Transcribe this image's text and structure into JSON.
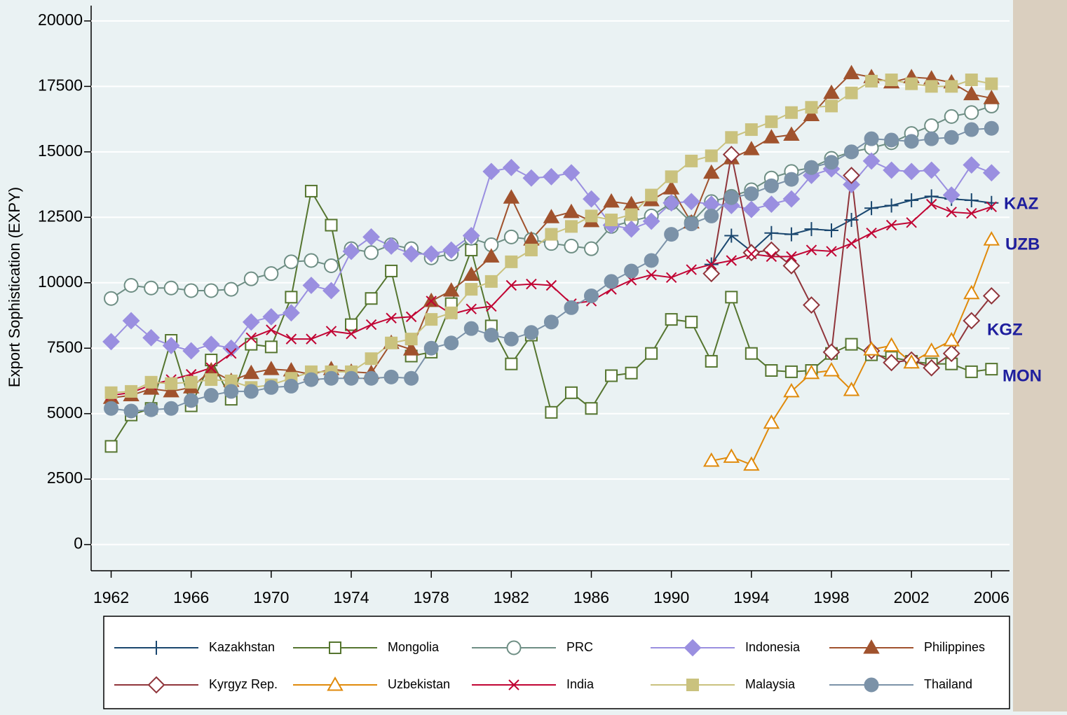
{
  "chart_data": {
    "type": "line",
    "y_label": "Export Sophistication (EXPY)",
    "x": [
      1962,
      1963,
      1964,
      1965,
      1966,
      1967,
      1968,
      1969,
      1970,
      1971,
      1972,
      1973,
      1974,
      1975,
      1976,
      1977,
      1978,
      1979,
      1980,
      1981,
      1982,
      1983,
      1984,
      1985,
      1986,
      1987,
      1988,
      1989,
      1990,
      1991,
      1992,
      1993,
      1994,
      1995,
      1996,
      1997,
      1998,
      1999,
      2000,
      2001,
      2002,
      2003,
      2004,
      2005,
      2006
    ],
    "xlim": [
      1961,
      2006.9
    ],
    "xticks": [
      1962,
      1966,
      1970,
      1974,
      1978,
      1982,
      1986,
      1990,
      1994,
      1998,
      2002,
      2006
    ],
    "ylim": [
      -1000,
      20800
    ],
    "yticks": [
      0,
      2500,
      5000,
      7500,
      10000,
      12500,
      15000,
      17500,
      20000
    ],
    "grid": true,
    "series": [
      {
        "name": "Kazakhstan",
        "color": "#1a476f",
        "marker": "plus",
        "values": [
          null,
          null,
          null,
          null,
          null,
          null,
          null,
          null,
          null,
          null,
          null,
          null,
          null,
          null,
          null,
          null,
          null,
          null,
          null,
          null,
          null,
          null,
          null,
          null,
          null,
          null,
          null,
          null,
          null,
          null,
          10700,
          11800,
          11200,
          11900,
          11850,
          12050,
          12000,
          12400,
          12850,
          12950,
          13150,
          13300,
          13200,
          13150,
          13050
        ]
      },
      {
        "name": "Mongolia",
        "color": "#55752f",
        "marker": "square-open",
        "values": [
          3750,
          4950,
          5200,
          7800,
          5300,
          7050,
          5550,
          7650,
          7550,
          9450,
          13500,
          12200,
          8400,
          9400,
          10450,
          7200,
          7350,
          9200,
          11250,
          8350,
          6900,
          8000,
          5050,
          5800,
          5200,
          6450,
          6550,
          7300,
          8600,
          8500,
          7000,
          9450,
          7300,
          6650,
          6600,
          6650,
          7300,
          7650,
          7250,
          7150,
          7000,
          6900,
          6900,
          6600,
          6700
        ]
      },
      {
        "name": "PRC",
        "color": "#6e8e84",
        "marker": "circle-open",
        "values": [
          9400,
          9900,
          9800,
          9800,
          9700,
          9700,
          9750,
          10150,
          10350,
          10800,
          10850,
          10650,
          11300,
          11150,
          11450,
          11300,
          10950,
          11100,
          11700,
          11450,
          11750,
          11650,
          11500,
          11400,
          11300,
          12150,
          12350,
          12550,
          13050,
          12300,
          13100,
          13300,
          13550,
          14000,
          14250,
          14400,
          14750,
          15000,
          15150,
          15350,
          15700,
          16000,
          16350,
          16500,
          16750
        ]
      },
      {
        "name": "Indonesia",
        "color": "#9a8fe0",
        "marker": "diamond",
        "values": [
          7750,
          8550,
          7900,
          7600,
          7400,
          7650,
          7500,
          8500,
          8700,
          8850,
          9900,
          9700,
          11200,
          11750,
          11400,
          11100,
          11100,
          11250,
          11800,
          14250,
          14400,
          14000,
          14050,
          14200,
          13200,
          12200,
          12050,
          12350,
          13050,
          13100,
          13000,
          12950,
          12800,
          13000,
          13200,
          14100,
          14350,
          13750,
          14650,
          14300,
          14250,
          14300,
          13350,
          14500,
          14200
        ]
      },
      {
        "name": "Philippines",
        "color": "#a0522d",
        "marker": "triangle",
        "values": [
          5600,
          5700,
          5950,
          5850,
          6000,
          6650,
          6250,
          6550,
          6700,
          6650,
          6500,
          6700,
          6600,
          6550,
          7700,
          7450,
          9300,
          9700,
          10300,
          11000,
          13250,
          11650,
          12500,
          12700,
          12350,
          13100,
          13000,
          13150,
          13600,
          12300,
          14200,
          14750,
          15100,
          15550,
          15650,
          16400,
          17250,
          18000,
          17850,
          17650,
          17850,
          17800,
          17650,
          17200,
          17050
        ]
      },
      {
        "name": "Kyrgyz Rep.",
        "color": "#90353b",
        "marker": "diamond-open",
        "values": [
          null,
          null,
          null,
          null,
          null,
          null,
          null,
          null,
          null,
          null,
          null,
          null,
          null,
          null,
          null,
          null,
          null,
          null,
          null,
          null,
          null,
          null,
          null,
          null,
          null,
          null,
          null,
          null,
          null,
          null,
          10350,
          14900,
          11150,
          11250,
          10650,
          9150,
          7350,
          14100,
          7400,
          6950,
          7050,
          6750,
          7300,
          8550,
          9500
        ]
      },
      {
        "name": "Uzbekistan",
        "color": "#e08a0b",
        "marker": "triangle-open",
        "values": [
          null,
          null,
          null,
          null,
          null,
          null,
          null,
          null,
          null,
          null,
          null,
          null,
          null,
          null,
          null,
          null,
          null,
          null,
          null,
          null,
          null,
          null,
          null,
          null,
          null,
          null,
          null,
          null,
          null,
          null,
          3200,
          3350,
          3050,
          4650,
          5850,
          6550,
          6650,
          5900,
          7450,
          7600,
          6950,
          7400,
          7800,
          9600,
          11650
        ]
      },
      {
        "name": "India",
        "color": "#c10534",
        "marker": "x",
        "values": [
          5700,
          5800,
          6100,
          6300,
          6500,
          6750,
          7300,
          7900,
          8200,
          7850,
          7850,
          8150,
          8050,
          8400,
          8650,
          8700,
          9300,
          8800,
          9000,
          9100,
          9900,
          9950,
          9900,
          9200,
          9300,
          9750,
          10100,
          10300,
          10200,
          10500,
          10700,
          10850,
          11100,
          11000,
          11000,
          11250,
          11200,
          11500,
          11900,
          12200,
          12300,
          13000,
          12700,
          12650,
          12900
        ]
      },
      {
        "name": "Malaysia",
        "color": "#cac27e",
        "marker": "square",
        "values": [
          5800,
          5850,
          6200,
          6150,
          6200,
          6300,
          6250,
          6000,
          6100,
          6350,
          6600,
          6600,
          6600,
          7100,
          7700,
          7850,
          8600,
          8850,
          9750,
          10050,
          10800,
          11250,
          11850,
          12150,
          12550,
          12400,
          12600,
          13350,
          14050,
          14650,
          14850,
          15550,
          15850,
          16150,
          16500,
          16700,
          16750,
          17250,
          17700,
          17750,
          17600,
          17500,
          17500,
          17750,
          17600
        ]
      },
      {
        "name": "Thailand",
        "color": "#7b92a8",
        "marker": "circle",
        "values": [
          5200,
          5100,
          5150,
          5200,
          5500,
          5700,
          5850,
          5850,
          6000,
          6050,
          6300,
          6350,
          6350,
          6350,
          6400,
          6350,
          7500,
          7700,
          8250,
          8000,
          7850,
          8100,
          8500,
          9050,
          9500,
          10050,
          10450,
          10850,
          11850,
          12250,
          12550,
          13250,
          13400,
          13700,
          13950,
          14400,
          14600,
          15000,
          15500,
          15450,
          15400,
          15500,
          15550,
          15850,
          15900
        ]
      }
    ],
    "annotations": [
      "KAZ",
      "UZB",
      "KGZ",
      "MON"
    ]
  }
}
